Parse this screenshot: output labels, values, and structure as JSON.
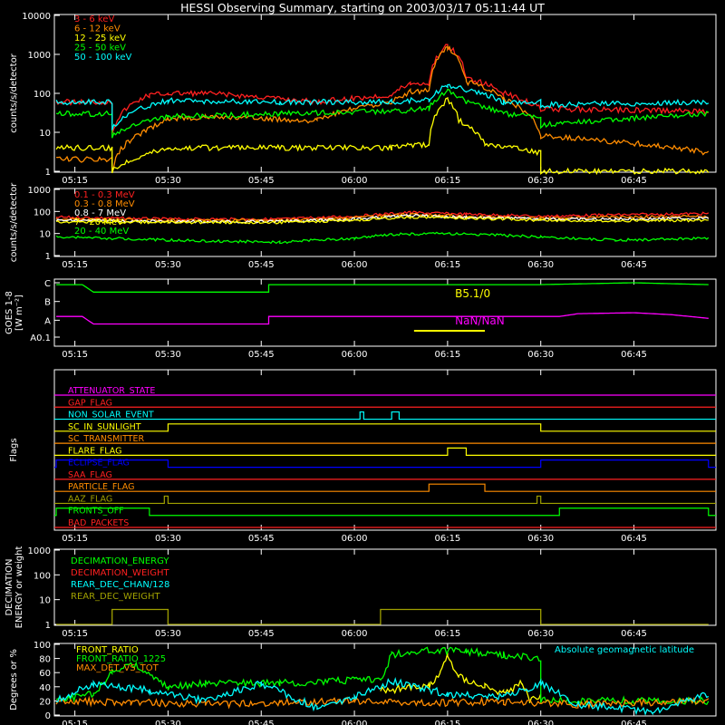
{
  "title": "HESSI Observing Summary, starting on 2003/03/17 05:11:44 UT",
  "time_ticks": [
    "05:15",
    "05:30",
    "05:45",
    "06:00",
    "06:15",
    "06:30",
    "06:45"
  ],
  "colors": {
    "red": "#ff2020",
    "orange": "#ff8c00",
    "yellow": "#ffff00",
    "green": "#00ff00",
    "cyan": "#00ffff",
    "magenta": "#ff00ff",
    "blue": "#0000ff",
    "olive": "#a0a000",
    "white": "#ffffff"
  },
  "chart_data": [
    {
      "id": "lightcurves",
      "type": "line",
      "ylabel": "counts/s/detector",
      "yscale": "log",
      "ylim": [
        1,
        10000
      ],
      "yticks": [
        "1",
        "10",
        "100",
        "1000",
        "10000"
      ],
      "x_range_min": [
        5.2,
        6.95
      ],
      "series": [
        {
          "name": "3 - 6 keV",
          "color": "red",
          "x": [
            5.2,
            5.35,
            5.35,
            5.45,
            5.5,
            5.6,
            5.9,
            6.1,
            6.15,
            6.2,
            6.25,
            6.3,
            6.4,
            6.5,
            6.95
          ],
          "y": [
            60,
            60,
            10,
            90,
            100,
            100,
            60,
            90,
            180,
            180,
            1700,
            250,
            100,
            40,
            35
          ]
        },
        {
          "name": "6 - 12 keV",
          "color": "orange",
          "x": [
            5.2,
            5.35,
            5.35,
            5.45,
            5.5,
            5.6,
            5.9,
            6.1,
            6.15,
            6.2,
            6.25,
            6.3,
            6.4,
            6.5,
            6.95
          ],
          "y": [
            2,
            2,
            1,
            12,
            22,
            25,
            20,
            60,
            110,
            120,
            1500,
            200,
            70,
            8,
            3
          ]
        },
        {
          "name": "12 - 25 keV",
          "color": "yellow",
          "x": [
            5.2,
            5.35,
            5.35,
            5.5,
            5.8,
            6.1,
            6.2,
            6.22,
            6.25,
            6.28,
            6.35,
            6.5,
            6.5,
            6.95
          ],
          "y": [
            4,
            4,
            1,
            4,
            4,
            4,
            5,
            30,
            70,
            20,
            5,
            3,
            1,
            1
          ]
        },
        {
          "name": "25 - 50 keV",
          "color": "green",
          "x": [
            5.2,
            5.35,
            5.35,
            5.5,
            5.8,
            6.1,
            6.2,
            6.25,
            6.3,
            6.4,
            6.5,
            6.5,
            6.95
          ],
          "y": [
            30,
            30,
            8,
            25,
            30,
            35,
            40,
            120,
            60,
            30,
            25,
            15,
            30
          ]
        },
        {
          "name": "50 - 100 keV",
          "color": "cyan",
          "x": [
            5.2,
            5.35,
            5.35,
            5.5,
            5.8,
            6.1,
            6.2,
            6.25,
            6.3,
            6.4,
            6.5,
            6.5,
            6.95
          ],
          "y": [
            60,
            60,
            13,
            65,
            60,
            60,
            70,
            160,
            120,
            60,
            60,
            50,
            60
          ]
        }
      ]
    },
    {
      "id": "high_energy",
      "type": "line",
      "ylabel": "counts/s/detector",
      "yscale": "log",
      "ylim": [
        1,
        1000
      ],
      "yticks": [
        "1",
        "10",
        "100",
        "1000"
      ],
      "series": [
        {
          "name": "0.1 - 0.3 MeV",
          "color": "red",
          "x": [
            5.2,
            5.5,
            5.8,
            6.0,
            6.15,
            6.3,
            6.5,
            6.7,
            6.95
          ],
          "y": [
            55,
            45,
            45,
            60,
            90,
            75,
            60,
            70,
            80
          ]
        },
        {
          "name": "0.3 - 0.8 MeV",
          "color": "orange",
          "x": [
            5.2,
            5.5,
            5.8,
            6.0,
            6.15,
            6.3,
            6.5,
            6.7,
            6.95
          ],
          "y": [
            45,
            40,
            40,
            50,
            75,
            60,
            50,
            55,
            60
          ]
        },
        {
          "name": "0.8 - 7 MeV",
          "color": "white",
          "x": [
            5.2,
            5.5,
            5.8,
            6.0,
            6.15,
            6.3,
            6.5,
            6.7,
            6.95
          ],
          "y": [
            40,
            35,
            35,
            45,
            65,
            55,
            45,
            45,
            50
          ]
        },
        {
          "name": "7 - 20 MeV",
          "color": "yellow",
          "x": [
            5.2,
            5.5,
            5.8,
            6.0,
            6.15,
            6.3,
            6.5,
            6.7,
            6.95
          ],
          "y": [
            35,
            32,
            32,
            40,
            55,
            50,
            40,
            38,
            40
          ]
        },
        {
          "name": "20 - 40 MeV",
          "color": "green",
          "x": [
            5.2,
            5.5,
            5.8,
            6.0,
            6.1,
            6.25,
            6.5,
            6.7,
            6.95
          ],
          "y": [
            7,
            5,
            4,
            6,
            9,
            10,
            7,
            5,
            6
          ]
        }
      ]
    },
    {
      "id": "goes",
      "type": "line",
      "ylabel_lines": [
        "GOES 1-8",
        "[W m⁻²]"
      ],
      "yticks": [
        "A0.1",
        "A",
        "B",
        "C"
      ],
      "annotations": [
        "B5.1/0",
        "NaN/NaN"
      ],
      "series": [
        {
          "name": "goes_long",
          "color": "green",
          "x": [
            5.2,
            5.27,
            5.3,
            5.77,
            5.77,
            6.5,
            6.75,
            6.95
          ],
          "y": [
            2.9,
            2.9,
            2.5,
            2.5,
            2.9,
            2.9,
            3.0,
            2.9
          ]
        },
        {
          "name": "goes_short",
          "color": "magenta",
          "x": [
            5.2,
            5.27,
            5.3,
            5.77,
            5.77,
            6.55,
            6.6,
            6.75,
            6.85,
            6.95
          ],
          "y": [
            1.2,
            1.2,
            0.8,
            0.8,
            1.2,
            1.2,
            1.35,
            1.4,
            1.3,
            1.1
          ]
        }
      ]
    },
    {
      "id": "flags",
      "type": "line",
      "ylabel": "Flags",
      "flags": [
        {
          "name": "ATTENUATOR_STATE",
          "color": "magenta",
          "pulses": []
        },
        {
          "name": "GAP_FLAG",
          "color": "red",
          "pulses": []
        },
        {
          "name": "NON_SOLAR_EVENT",
          "color": "cyan",
          "pulses": [
            [
              6.015,
              6.025
            ],
            [
              6.1,
              6.12
            ]
          ]
        },
        {
          "name": "SC_IN_SUNLIGHT",
          "color": "yellow",
          "pulses": [
            [
              5.5,
              6.5
            ]
          ]
        },
        {
          "name": "SC_TRANSMITTER",
          "color": "orange",
          "pulses": []
        },
        {
          "name": "FLARE_FLAG",
          "color": "yellow",
          "pulses": [
            [
              6.25,
              6.3
            ]
          ]
        },
        {
          "name": "ECLIPSE_FLAG",
          "color": "blue",
          "pulses": [
            [
              5.2,
              5.5
            ],
            [
              6.5,
              6.95
            ]
          ]
        },
        {
          "name": "SAA_FLAG",
          "color": "red",
          "pulses": []
        },
        {
          "name": "PARTICLE_FLAG",
          "color": "orange",
          "pulses": [
            [
              6.2,
              6.35
            ]
          ]
        },
        {
          "name": "AAZ_FLAG",
          "color": "olive",
          "pulses": [
            [
              5.49,
              5.5
            ],
            [
              6.49,
              6.5
            ]
          ]
        },
        {
          "name": "FRONTS_OFF",
          "color": "green",
          "pulses": [
            [
              5.2,
              5.45
            ],
            [
              6.55,
              6.95
            ]
          ]
        },
        {
          "name": "BAD_PACKETS",
          "color": "red",
          "pulses": []
        }
      ]
    },
    {
      "id": "decimation",
      "type": "line",
      "ylabel_lines": [
        "DECIMATION",
        "ENERGY or weight"
      ],
      "yscale": "log",
      "ylim": [
        1,
        1000
      ],
      "yticks": [
        "1",
        "10",
        "100",
        "1000"
      ],
      "series": [
        {
          "name": "DECIMATION_ENERGY",
          "color": "green",
          "x": [],
          "y": []
        },
        {
          "name": "DECIMATION_WEIGHT",
          "color": "red",
          "x": [],
          "y": []
        },
        {
          "name": "REAR_DEC_CHAN/128",
          "color": "cyan",
          "x": [],
          "y": []
        },
        {
          "name": "REAR_DEC_WEIGHT",
          "color": "olive",
          "x": [
            5.2,
            5.35,
            5.35,
            5.5,
            5.5,
            6.07,
            6.07,
            6.5,
            6.5,
            6.95
          ],
          "y": [
            1,
            1,
            4,
            4,
            1,
            1,
            4,
            4,
            1,
            1
          ]
        }
      ]
    },
    {
      "id": "ratios",
      "type": "line",
      "ylabel": "Degrees or %",
      "ylim": [
        0,
        100
      ],
      "yticks": [
        "0",
        "20",
        "40",
        "60",
        "80",
        "100"
      ],
      "right_label": "Absolute geomagnetic latitude",
      "series": [
        {
          "name": "FRONT_RATIO",
          "color": "yellow",
          "x": [
            6.07,
            6.2,
            6.23,
            6.25,
            6.28,
            6.35,
            6.4,
            6.45,
            6.47,
            6.5
          ],
          "y": [
            35,
            40,
            60,
            85,
            55,
            40,
            30,
            45,
            20,
            25
          ]
        },
        {
          "name": "FRONT_RATIO_1225",
          "color": "green",
          "x": [
            5.2,
            5.3,
            5.35,
            5.4,
            5.5,
            5.6,
            5.8,
            6.0,
            6.07,
            6.1,
            6.2,
            6.3,
            6.4,
            6.5,
            6.5,
            6.95
          ],
          "y": [
            20,
            30,
            60,
            75,
            40,
            45,
            45,
            50,
            50,
            85,
            92,
            90,
            85,
            80,
            20,
            20
          ]
        },
        {
          "name": "MAX_DET_VS_TOT",
          "color": "orange",
          "x": [
            5.2,
            5.4,
            5.6,
            5.8,
            6.0,
            6.2,
            6.4,
            6.6,
            6.8,
            6.95
          ],
          "y": [
            20,
            18,
            15,
            18,
            20,
            17,
            19,
            15,
            18,
            20
          ]
        },
        {
          "name": "geomagnetic_latitude",
          "color": "cyan",
          "x": [
            5.2,
            5.3,
            5.45,
            5.6,
            5.75,
            5.9,
            6.0,
            6.1,
            6.25,
            6.4,
            6.5,
            6.6,
            6.8,
            6.95
          ],
          "y": [
            20,
            45,
            35,
            20,
            45,
            10,
            25,
            48,
            30,
            25,
            45,
            15,
            5,
            30
          ]
        }
      ]
    }
  ]
}
